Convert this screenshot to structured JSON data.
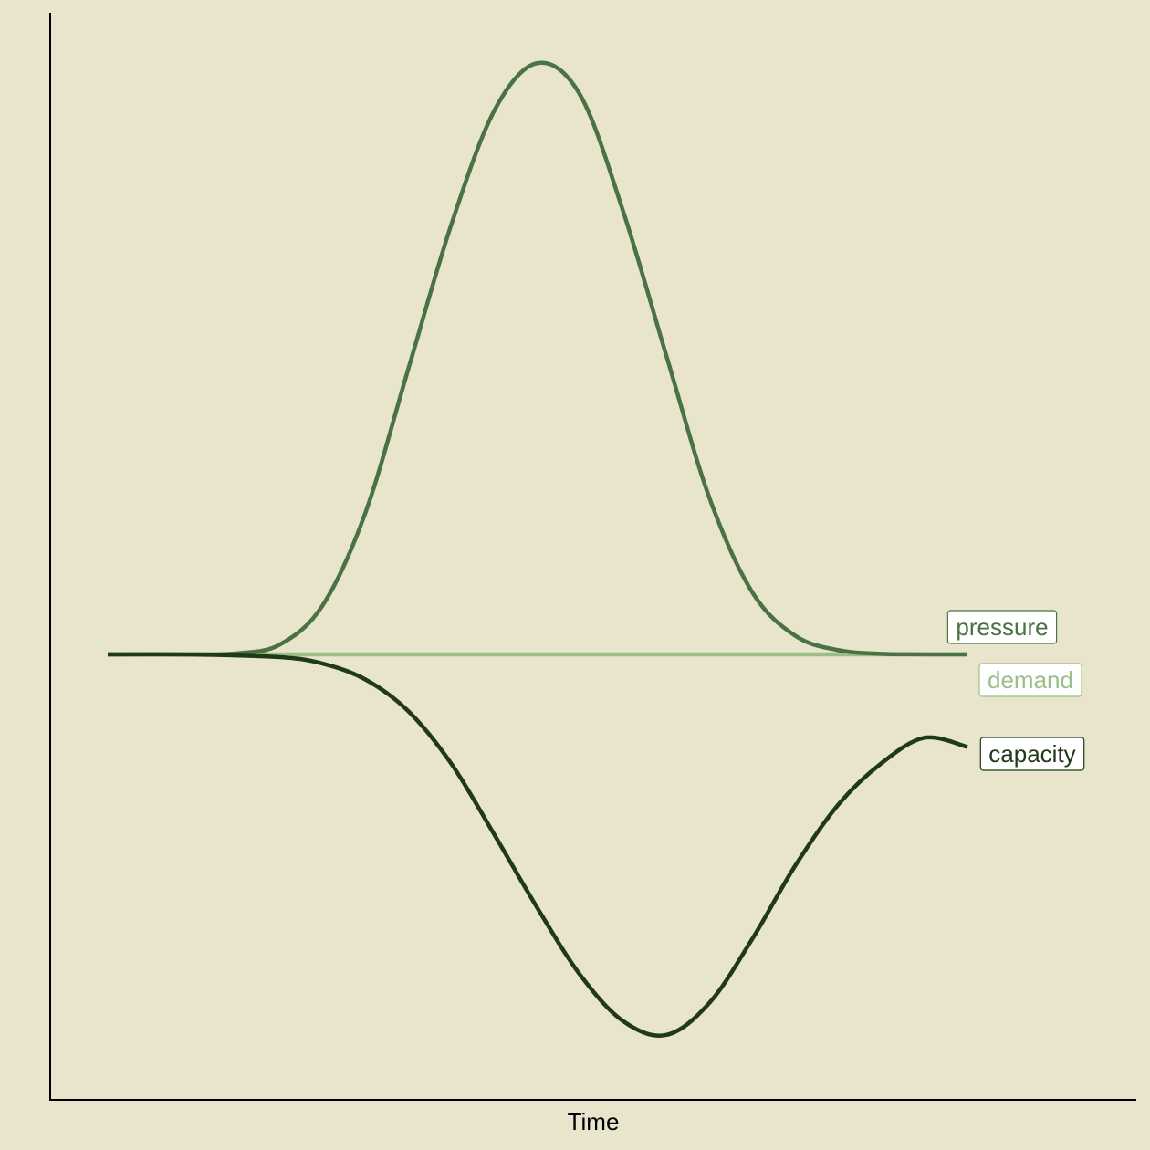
{
  "chart_data": {
    "type": "line",
    "xlabel": "Time",
    "ylabel": "",
    "xlim": [
      0,
      1
    ],
    "ylim": [
      -0.85,
      1.3
    ],
    "grid": false,
    "legend": "direct labels at right end of each line",
    "series": [
      {
        "name": "demand",
        "color": "#9bbf86",
        "x": [
          0,
          0.1,
          0.2,
          0.3,
          0.4,
          0.5,
          0.6,
          0.7,
          0.8,
          0.9,
          1
        ],
        "y": [
          0,
          0,
          0,
          0,
          0,
          0,
          0,
          0,
          0,
          0,
          0
        ]
      },
      {
        "name": "pressure",
        "color": "#4a7244",
        "x": [
          0,
          0.1,
          0.15,
          0.2,
          0.25,
          0.3,
          0.35,
          0.4,
          0.45,
          0.5,
          0.55,
          0.6,
          0.65,
          0.7,
          0.75,
          0.8,
          0.85,
          0.9,
          0.95,
          1
        ],
        "y": [
          0,
          0.0001,
          0.0021,
          0.0203,
          0.1023,
          0.297,
          0.598,
          0.899,
          1.136,
          1.234,
          1.166,
          0.922,
          0.622,
          0.326,
          0.129,
          0.0385,
          0.0088,
          0.0012,
          0.0001,
          0
        ]
      },
      {
        "name": "capacity",
        "color": "#1f3a17",
        "x": [
          0,
          0.1,
          0.2,
          0.25,
          0.3,
          0.35,
          0.4,
          0.45,
          0.5,
          0.55,
          0.6,
          0.65,
          0.7,
          0.75,
          0.8,
          0.85,
          0.9,
          0.95,
          1
        ],
        "y": [
          0,
          -0.0003,
          -0.0058,
          -0.0191,
          -0.0526,
          -0.119,
          -0.229,
          -0.377,
          -0.53,
          -0.67,
          -0.766,
          -0.794,
          -0.727,
          -0.593,
          -0.44,
          -0.313,
          -0.227,
          -0.174,
          -0.193
        ]
      }
    ],
    "labels": [
      {
        "text": "pressure",
        "series": "pressure",
        "color": "#4a7244"
      },
      {
        "text": "demand",
        "series": "demand",
        "color": "#9bbf86"
      },
      {
        "text": "capacity",
        "series": "capacity",
        "color": "#1f3a17"
      }
    ]
  }
}
